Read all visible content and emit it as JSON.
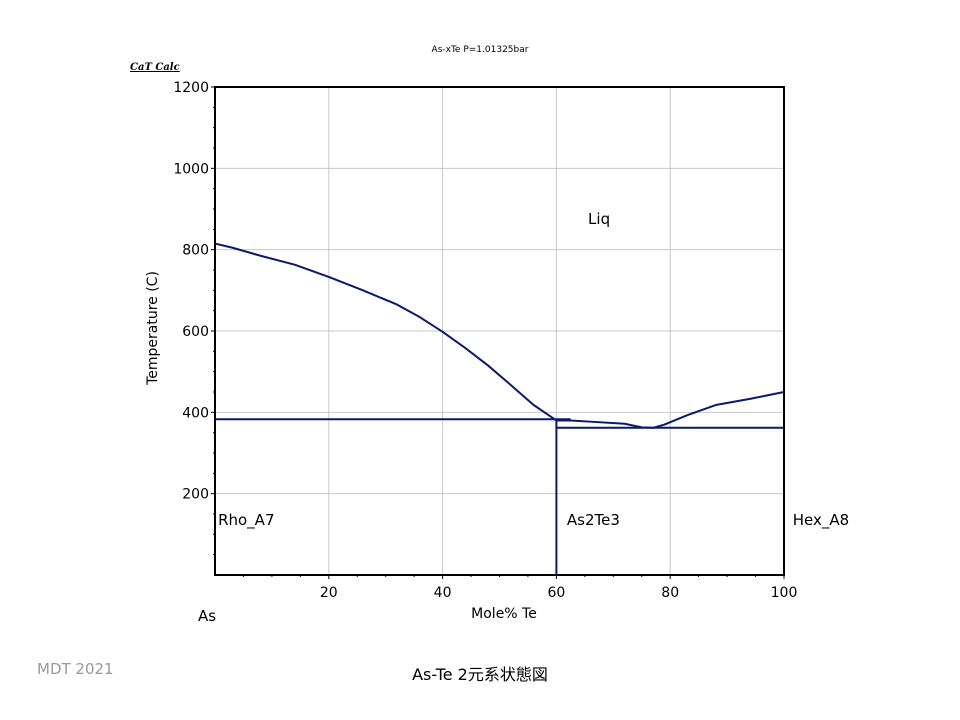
{
  "logo_text": "CaT Calc",
  "credit": "MDT   2021",
  "caption": "As-Te 2元系状態図",
  "left_endpoint": "As",
  "chart_data": {
    "type": "line",
    "title": "As-xTe    P=1.01325bar",
    "xlabel": "Mole% Te",
    "ylabel": "Temperature (C)",
    "xlim": [
      0,
      100
    ],
    "ylim": [
      0,
      1200
    ],
    "xticks": [
      20,
      40,
      60,
      80,
      100
    ],
    "yticks": [
      200,
      400,
      600,
      800,
      1000,
      1200
    ],
    "grid": true,
    "line_color": "#0a1a6a",
    "series": [
      {
        "x": [
          0,
          3,
          8,
          14,
          20,
          26,
          32,
          36,
          40,
          44,
          48,
          52,
          56,
          60,
          62.5,
          66,
          72,
          75,
          77,
          79,
          83,
          88,
          94,
          100
        ],
        "y": [
          815,
          805,
          785,
          763,
          733,
          700,
          665,
          634,
          598,
          558,
          515,
          467,
          418,
          380,
          380,
          377,
          372,
          363,
          362,
          370,
          393,
          418,
          433,
          450
        ]
      },
      {
        "x": [
          0,
          62.5
        ],
        "y": [
          383,
          383
        ]
      },
      {
        "x": [
          60,
          60
        ],
        "y": [
          0,
          383
        ]
      },
      {
        "x": [
          60,
          100
        ],
        "y": [
          362,
          362
        ]
      }
    ],
    "annotations": [
      {
        "text": "Liq",
        "x": 67.5,
        "y": 875
      },
      {
        "text": "Rho_A7",
        "x": 5.5,
        "y": 135
      },
      {
        "text": "As2Te3",
        "x": 66.5,
        "y": 135
      },
      {
        "text": "Hex_A8",
        "x": 106.5,
        "y": 135
      }
    ]
  }
}
